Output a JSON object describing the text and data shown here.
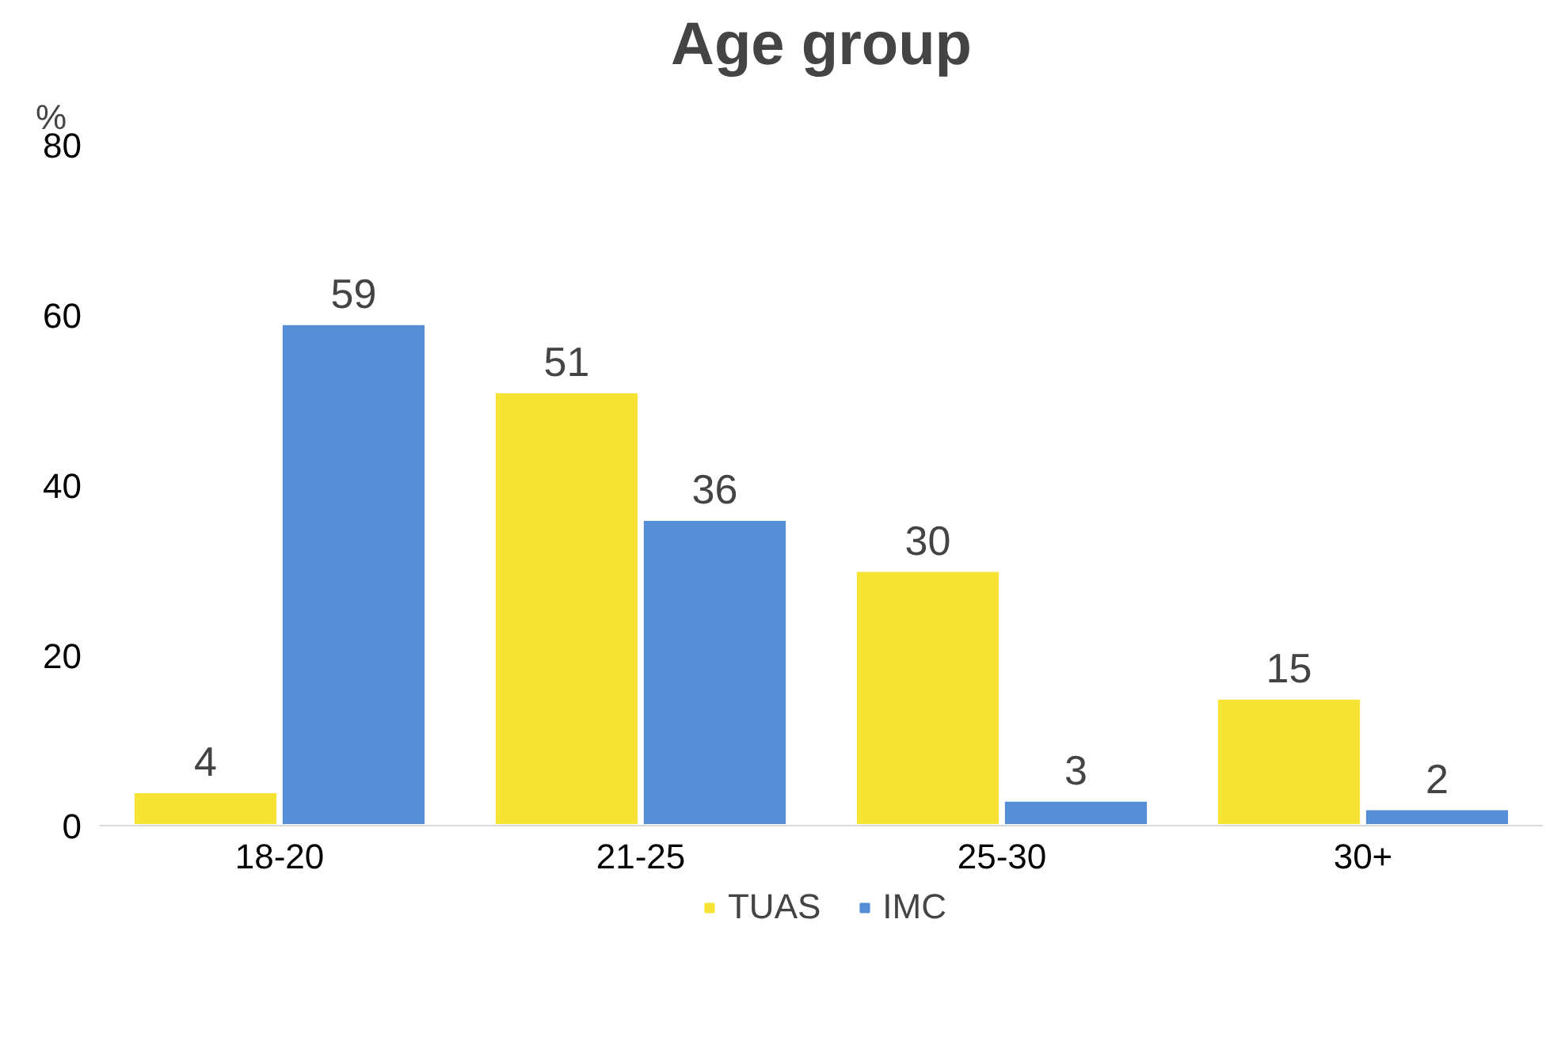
{
  "chart_data": {
    "type": "bar",
    "title": "Age group",
    "ylabel": "%",
    "categories": [
      "18-20",
      "21-25",
      "25-30",
      "30+"
    ],
    "series": [
      {
        "name": "TUAS",
        "color": "#f7e334",
        "values": [
          4,
          51,
          30,
          15
        ]
      },
      {
        "name": "IMC",
        "color": "#558ed5",
        "values": [
          59,
          36,
          3,
          2
        ]
      }
    ],
    "ylim": [
      0,
      80
    ],
    "yticks": [
      0,
      20,
      40,
      60,
      80
    ],
    "grid": false,
    "legend": "bottom",
    "data_labels": true
  }
}
